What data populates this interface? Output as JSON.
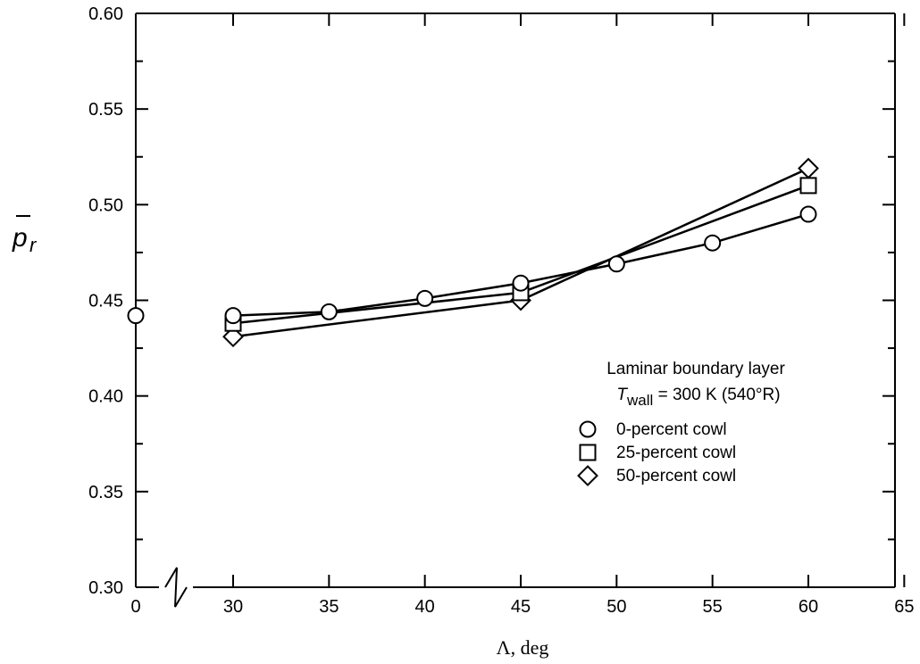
{
  "chart_data": {
    "type": "line",
    "xlabel": "Λ, deg",
    "ylabel": "p",
    "ylabel_subscript": "r",
    "ylim": [
      0.3,
      0.6
    ],
    "y_ticks": [
      "0.30",
      "0.35",
      "0.40",
      "0.45",
      "0.50",
      "0.55",
      "0.60"
    ],
    "x_ticks": [
      "0",
      "30",
      "35",
      "40",
      "45",
      "50",
      "55",
      "60",
      "65"
    ],
    "xlim_main": [
      25,
      65
    ],
    "axis_break": true,
    "grid": false,
    "legend_placement": "right",
    "legend": {
      "title_line1": "Laminar boundary layer",
      "title_line2_sym": "T",
      "title_line2_sub": "wall",
      "title_line2_rest": " = 300 K (540°R)"
    },
    "series": [
      {
        "name": "0-percent cowl",
        "marker": "circle",
        "line_x": [
          30,
          35,
          40,
          45,
          50,
          55,
          60
        ],
        "line_y": [
          0.442,
          0.444,
          0.451,
          0.459,
          0.469,
          0.48,
          0.495
        ],
        "points_x": [
          30,
          35,
          40,
          45,
          50,
          55,
          60
        ],
        "points_y": [
          0.442,
          0.444,
          0.451,
          0.459,
          0.469,
          0.48,
          0.495
        ],
        "extra_point": {
          "x": 0,
          "y": 0.442
        }
      },
      {
        "name": "25-percent cowl",
        "marker": "square",
        "line_x": [
          30,
          45,
          60
        ],
        "line_y": [
          0.438,
          0.454,
          0.51
        ],
        "points_x": [
          30,
          45,
          60
        ],
        "points_y": [
          0.438,
          0.454,
          0.51
        ]
      },
      {
        "name": "50-percent cowl",
        "marker": "diamond",
        "line_x": [
          30,
          45,
          60
        ],
        "line_y": [
          0.431,
          0.45,
          0.519
        ],
        "points_x": [
          30,
          45,
          60
        ],
        "points_y": [
          0.431,
          0.45,
          0.519
        ]
      }
    ]
  }
}
